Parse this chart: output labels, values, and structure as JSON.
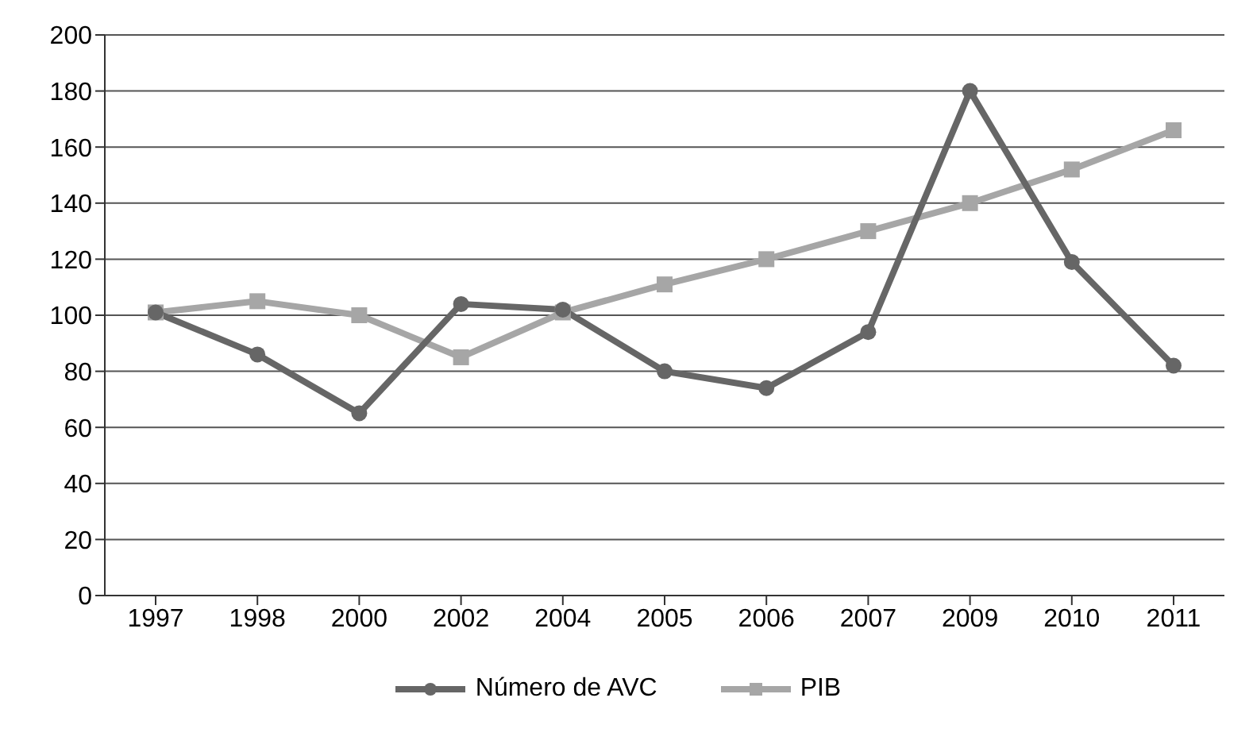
{
  "chart_data": {
    "type": "line",
    "categories": [
      "1997",
      "1998",
      "2000",
      "2002",
      "2004",
      "2005",
      "2006",
      "2007",
      "2009",
      "2010",
      "2011"
    ],
    "series": [
      {
        "name": "Número de AVC",
        "color": "#666666",
        "marker": "circle",
        "values": [
          101,
          86,
          65,
          104,
          102,
          80,
          74,
          94,
          180,
          119,
          82
        ]
      },
      {
        "name": "PIB",
        "color": "#a6a6a6",
        "marker": "square",
        "values": [
          101,
          105,
          100,
          85,
          101,
          111,
          120,
          130,
          140,
          152,
          166
        ]
      }
    ],
    "ylim": [
      0,
      200
    ],
    "yticks": [
      0,
      20,
      40,
      60,
      80,
      100,
      120,
      140,
      160,
      180,
      200
    ],
    "grid": "y",
    "legend": "bottom"
  }
}
